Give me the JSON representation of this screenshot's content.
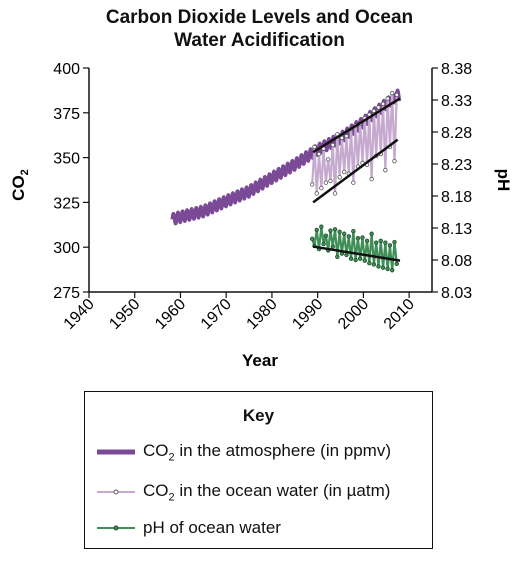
{
  "chart_data": {
    "type": "line",
    "title": "Carbon Dioxide Levels and Ocean Water Acidification",
    "title_lines": [
      "Carbon Dioxide Levels and Ocean",
      "Water Acidification"
    ],
    "xlabel": "Year",
    "ylabel": "CO2",
    "ylabel_main": "CO",
    "ylabel_sub": "2",
    "y2label": "pH",
    "xlim": [
      1940,
      2015
    ],
    "x_ticks": [
      1940,
      1950,
      1960,
      1970,
      1980,
      1990,
      2000,
      2010
    ],
    "ylim": [
      275,
      400
    ],
    "y_ticks": [
      275,
      300,
      325,
      350,
      375,
      400
    ],
    "y2lim": [
      8.03,
      8.38
    ],
    "y2_ticks": [
      "8.03",
      "8.08",
      "8.13",
      "8.18",
      "8.23",
      "8.28",
      "8.33",
      "8.38"
    ],
    "grid": false,
    "series": [
      {
        "name": "CO2 in the atmosphere (in ppmv)",
        "axis": "left",
        "color": "#7b4a96",
        "style": "thick-line",
        "x": [
          1958.2,
          1960,
          1965,
          1970,
          1975,
          1980,
          1985,
          1990,
          1995,
          2000,
          2005,
          2008
        ],
        "y": [
          315.5,
          316.9,
          320.0,
          325.7,
          331.1,
          338.7,
          346.1,
          354.4,
          360.8,
          369.7,
          379.9,
          385.6
        ],
        "seasonal_amplitude": 3
      },
      {
        "name": "CO2 in the ocean water (in µatm)",
        "axis": "left",
        "color": "#c5a9cf",
        "style": "line-with-points",
        "x": [
          1988.8,
          1989.3,
          1989.8,
          1990.3,
          1990.8,
          1991.3,
          1991.8,
          1992.3,
          1992.8,
          1993.3,
          1993.8,
          1994.3,
          1994.8,
          1995.3,
          1995.8,
          1996.3,
          1996.8,
          1997.3,
          1997.8,
          1998.3,
          1998.8,
          1999.3,
          1999.8,
          2000.3,
          2000.8,
          2001.3,
          2001.8,
          2002.3,
          2002.8,
          2003.3,
          2003.8,
          2004.3,
          2004.8,
          2005.3,
          2005.8,
          2006.3,
          2006.8,
          2007.3
        ],
        "y": [
          335,
          356,
          330,
          352,
          333,
          355,
          336,
          349,
          337,
          357,
          330,
          363,
          339,
          361,
          342,
          362,
          341,
          366,
          336,
          368,
          345,
          369,
          347,
          372,
          346,
          374,
          338,
          376,
          351,
          378,
          352,
          380,
          343,
          383,
          356,
          386,
          348,
          385
        ]
      },
      {
        "name": "pH of ocean water",
        "axis": "right",
        "color": "#3f8f56",
        "style": "line-with-points",
        "x": [
          1988.8,
          1989.3,
          1989.8,
          1990.3,
          1990.8,
          1991.3,
          1991.8,
          1992.3,
          1992.8,
          1993.3,
          1993.8,
          1994.3,
          1994.8,
          1995.3,
          1995.8,
          1996.3,
          1996.8,
          1997.3,
          1997.8,
          1998.3,
          1998.8,
          1999.3,
          1999.8,
          2000.3,
          2000.8,
          2001.3,
          2001.8,
          2002.3,
          2002.8,
          2003.3,
          2003.8,
          2004.3,
          2004.8,
          2005.3,
          2005.8,
          2006.3,
          2006.8,
          2007.3
        ],
        "y": [
          8.113,
          8.102,
          8.127,
          8.097,
          8.132,
          8.105,
          8.118,
          8.095,
          8.126,
          8.101,
          8.128,
          8.085,
          8.124,
          8.09,
          8.121,
          8.088,
          8.117,
          8.082,
          8.125,
          8.08,
          8.114,
          8.082,
          8.115,
          8.079,
          8.11,
          8.075,
          8.121,
          8.073,
          8.107,
          8.07,
          8.11,
          8.068,
          8.107,
          8.066,
          8.103,
          8.064,
          8.108,
          8.074
        ]
      }
    ],
    "trend_lines": [
      {
        "axis": "left",
        "x": [
          1989,
          2008
        ],
        "y": [
          353,
          383
        ]
      },
      {
        "axis": "left",
        "x": [
          1989,
          2007.5
        ],
        "y": [
          325,
          360
        ]
      },
      {
        "axis": "right",
        "x": [
          1989,
          2008
        ],
        "y": [
          8.101,
          8.079
        ]
      }
    ]
  },
  "key": {
    "title": "Key",
    "items": [
      {
        "main": "CO",
        "sub": "2",
        "rest": " in the atmosphere (in ppmv)"
      },
      {
        "main": "CO",
        "sub": "2",
        "rest": " in the ocean water (in µatm)"
      },
      {
        "main": "pH of ocean water",
        "sub": "",
        "rest": ""
      }
    ]
  }
}
